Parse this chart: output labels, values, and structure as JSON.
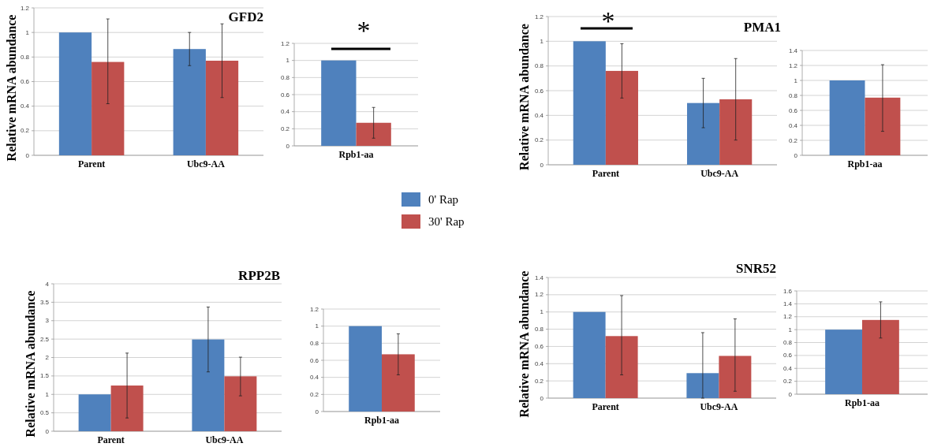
{
  "chart_data": [
    {
      "type": "bar",
      "title": "GFD2",
      "ylabel": "Relative mRNA abundance",
      "categories": [
        "Parent",
        "Ubc9-AA"
      ],
      "series": [
        {
          "name": "0' Rap",
          "color": "#4f81bd",
          "values": [
            1,
            0.865
          ],
          "errors": [
            null,
            [
              0.73,
              1.0
            ]
          ]
        },
        {
          "name": "30' Rap",
          "color": "#c0504d",
          "values": [
            0.76,
            0.77
          ],
          "errors": [
            [
              0.42,
              1.11
            ],
            [
              0.47,
              1.07
            ]
          ]
        }
      ],
      "ylim": [
        0,
        1.2
      ],
      "yticks": [
        0,
        0.2,
        0.4,
        0.6,
        0.8,
        1,
        1.2
      ],
      "grid": "y",
      "legend": "bottom right"
    },
    {
      "type": "bar",
      "categories": [
        "Rpb1-aa"
      ],
      "series": [
        {
          "color": "#4f81bd",
          "values": [
            1
          ],
          "errors": [
            null
          ]
        },
        {
          "color": "#c0504d",
          "values": [
            0.27
          ],
          "errors": [
            [
              0.09,
              0.45
            ]
          ]
        }
      ],
      "ylim": [
        0,
        1.2
      ],
      "yticks": [
        0,
        0.2,
        0.4,
        0.6,
        0.8,
        1,
        1.2
      ],
      "grid": "y",
      "annotations": [
        "*"
      ]
    },
    {
      "type": "bar",
      "title": "PMA1",
      "ylabel": "Relative mRNA abundance",
      "categories": [
        "Parent",
        "Ubc9-AA"
      ],
      "series": [
        {
          "color": "#4f81bd",
          "values": [
            1,
            0.5
          ],
          "errors": [
            null,
            [
              0.3,
              0.7
            ]
          ]
        },
        {
          "color": "#c0504d",
          "values": [
            0.76,
            0.53
          ],
          "errors": [
            [
              0.54,
              0.98
            ],
            [
              0.2,
              0.86
            ]
          ]
        }
      ],
      "ylim": [
        0,
        1.2
      ],
      "yticks": [
        0,
        0.2,
        0.4,
        0.6,
        0.8,
        1,
        1.2
      ],
      "grid": "y",
      "annotations": [
        "*"
      ]
    },
    {
      "type": "bar",
      "categories": [
        "Rpb1-aa"
      ],
      "series": [
        {
          "color": "#4f81bd",
          "values": [
            1
          ],
          "errors": [
            null
          ]
        },
        {
          "color": "#c0504d",
          "values": [
            0.77
          ],
          "errors": [
            [
              0.32,
              1.21
            ]
          ]
        }
      ],
      "ylim": [
        0,
        1.4
      ],
      "yticks": [
        0,
        0.2,
        0.4,
        0.6,
        0.8,
        1,
        1.2,
        1.4
      ],
      "grid": "y"
    },
    {
      "type": "bar",
      "title": "RPP2B",
      "ylabel": "Relative mRNA abundance",
      "categories": [
        "Parent",
        "Ubc9-AA"
      ],
      "series": [
        {
          "color": "#4f81bd",
          "values": [
            1,
            2.49
          ],
          "errors": [
            null,
            [
              1.61,
              3.37
            ]
          ]
        },
        {
          "color": "#c0504d",
          "values": [
            1.24,
            1.49
          ],
          "errors": [
            [
              0.36,
              2.12
            ],
            [
              0.96,
              2.01
            ]
          ]
        }
      ],
      "ylim": [
        0,
        4
      ],
      "yticks": [
        0,
        0.5,
        1,
        1.5,
        2,
        2.5,
        3,
        3.5,
        4
      ],
      "grid": "y"
    },
    {
      "type": "bar",
      "categories": [
        "Rpb1-aa"
      ],
      "series": [
        {
          "color": "#4f81bd",
          "values": [
            1
          ],
          "errors": [
            null
          ]
        },
        {
          "color": "#c0504d",
          "values": [
            0.67
          ],
          "errors": [
            [
              0.43,
              0.91
            ]
          ]
        }
      ],
      "ylim": [
        0,
        1.2
      ],
      "yticks": [
        0,
        0.2,
        0.4,
        0.6,
        0.8,
        1,
        1.2
      ],
      "grid": "y"
    },
    {
      "type": "bar",
      "title": "SNR52",
      "ylabel": "Relative mRNA abundance",
      "categories": [
        "Parent",
        "Ubc9-AA"
      ],
      "series": [
        {
          "color": "#4f81bd",
          "values": [
            1,
            0.29
          ],
          "errors": [
            null,
            [
              0,
              0.76
            ]
          ]
        },
        {
          "color": "#c0504d",
          "values": [
            0.72,
            0.49
          ],
          "errors": [
            [
              0.27,
              1.19
            ],
            [
              0.08,
              0.92
            ]
          ]
        }
      ],
      "ylim": [
        0,
        1.4
      ],
      "yticks": [
        0,
        0.2,
        0.4,
        0.6,
        0.8,
        1,
        1.2,
        1.4
      ],
      "grid": "y"
    },
    {
      "type": "bar",
      "categories": [
        "Rpb1-aa"
      ],
      "series": [
        {
          "color": "#4f81bd",
          "values": [
            1
          ],
          "errors": [
            null
          ]
        },
        {
          "color": "#c0504d",
          "values": [
            1.15
          ],
          "errors": [
            [
              0.87,
              1.43
            ]
          ]
        }
      ],
      "ylim": [
        0,
        1.6
      ],
      "yticks": [
        0,
        0.2,
        0.4,
        0.6,
        0.8,
        1,
        1.2,
        1.4,
        1.6
      ],
      "grid": "y"
    }
  ]
}
